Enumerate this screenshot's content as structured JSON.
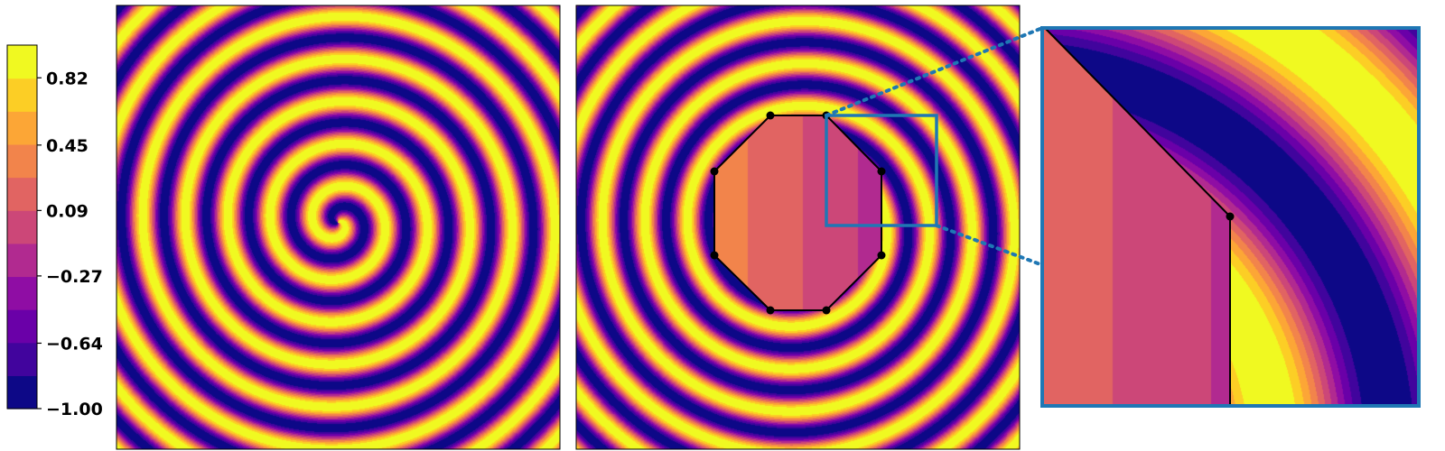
{
  "chart_data": [
    {
      "type": "heatmap",
      "colormap": "plasma",
      "levels": 11,
      "value_range": [
        -1.0,
        1.0
      ],
      "colorbar": {
        "tick_labels": [
          "0.82",
          "0.45",
          "0.09",
          "−0.27",
          "−0.64",
          "−1.00"
        ],
        "tick_values": [
          0.82,
          0.45,
          0.09,
          -0.27,
          -0.64,
          -1.0
        ],
        "placement": "left"
      },
      "title": "",
      "xlabel": "",
      "ylabel": "",
      "panels": [
        {
          "id": "full-spiral",
          "content": "spiral wave field"
        },
        {
          "id": "spiral-with-octagon",
          "content": "spiral wave field with octagonal inset region",
          "octagon_vertices": 8
        },
        {
          "id": "zoom-inset",
          "content": "magnified view of the boxed region"
        }
      ],
      "colors": {
        "zoom_box": "#1f77b4",
        "outline": "#000000"
      }
    }
  ]
}
